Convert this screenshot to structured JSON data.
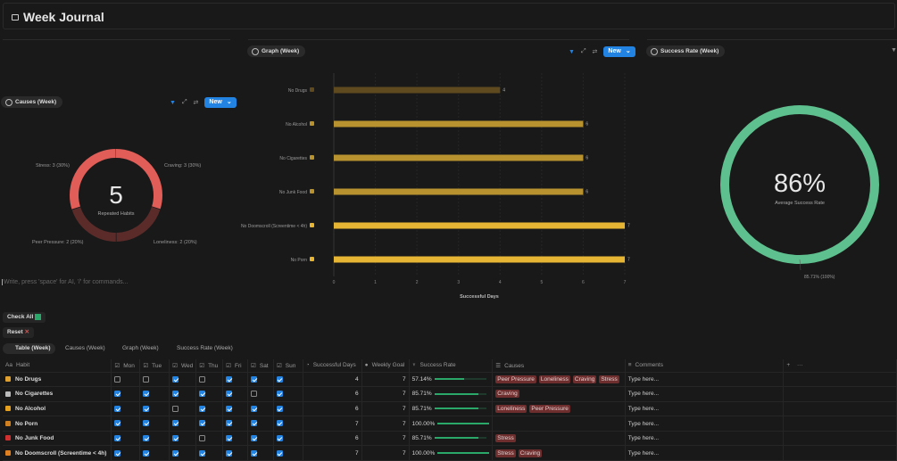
{
  "title": "Week Journal",
  "causes_panel": {
    "label": "Causes (Week)",
    "new": "New",
    "center_value": "5",
    "center_label": "Repeated Habits",
    "slices": [
      {
        "name": "Craving",
        "count": 3,
        "label": "Craving: 3 (30%)",
        "color": "#e05d58"
      },
      {
        "name": "Loneliness",
        "count": 2,
        "label": "Loneliness: 2 (20%)",
        "color": "#5a2b29"
      },
      {
        "name": "Peer Pressure",
        "count": 2,
        "label": "Peer Pressure: 2 (20%)",
        "color": "#5a2b29"
      },
      {
        "name": "Stress",
        "count": 3,
        "label": "Stress: 3 (30%)",
        "color": "#e05d58"
      }
    ]
  },
  "editor_placeholder": "Write, press 'space' for AI, '/' for commands...",
  "graph_panel": {
    "label": "Graph (Week)",
    "new": "New"
  },
  "chart_data": {
    "type": "bar",
    "orientation": "horizontal",
    "categories": [
      "No Drugs",
      "No Alcohol",
      "No Cigarettes",
      "No Junk Food",
      "No Doomscroll (Screentime < 4h)",
      "No Porn"
    ],
    "values": [
      4,
      6,
      6,
      6,
      7,
      7
    ],
    "colors": [
      "#5e4a1e",
      "#b8922e",
      "#b8922e",
      "#b8922e",
      "#e6b533",
      "#e6b533"
    ],
    "xlabel": "Successful Days",
    "xlim": [
      0,
      7
    ],
    "xticks": [
      "0",
      "1",
      "2",
      "3",
      "4",
      "5",
      "6",
      "7"
    ],
    "grid": true
  },
  "success_panel": {
    "label": "Success Rate (Week)",
    "value": "86%",
    "caption": "Average Success Rate",
    "slice_label": "85.71% (100%)",
    "fraction": 1.0,
    "color": "#5ec08e"
  },
  "buttons": {
    "check_all": "Check All",
    "reset": "Reset"
  },
  "tabs": [
    "Table (Week)",
    "Causes (Week)",
    "Graph (Week)",
    "Success Rate (Week)"
  ],
  "columns": [
    "Habit",
    "Mon",
    "Tue",
    "Wed",
    "Thu",
    "Fri",
    "Sat",
    "Sun",
    "Successful Days",
    "Weekly Goal",
    "Success Rate",
    "Causes",
    "Comments"
  ],
  "rows": [
    {
      "habit": "No Drugs",
      "icon": "pill-icon",
      "days": [
        false,
        false,
        true,
        false,
        true,
        true,
        true
      ],
      "successful": "4",
      "goal": "7",
      "rate": "57.14%",
      "rate_frac": 0.5714,
      "causes": [
        "Peer Pressure",
        "Loneliness",
        "Craving",
        "Stress"
      ],
      "comment": "Type here..."
    },
    {
      "habit": "No Cigarettes",
      "icon": "cigarette-icon",
      "days": [
        true,
        true,
        true,
        true,
        true,
        false,
        true
      ],
      "successful": "6",
      "goal": "7",
      "rate": "85.71%",
      "rate_frac": 0.8571,
      "causes": [
        "Craving"
      ],
      "comment": "Type here..."
    },
    {
      "habit": "No Alcohol",
      "icon": "beer-icon",
      "days": [
        true,
        true,
        false,
        true,
        true,
        true,
        true
      ],
      "successful": "6",
      "goal": "7",
      "rate": "85.71%",
      "rate_frac": 0.8571,
      "causes": [
        "Loneliness",
        "Peer Pressure"
      ],
      "comment": "Type here..."
    },
    {
      "habit": "No Porn",
      "icon": "no-porn-icon",
      "days": [
        true,
        true,
        true,
        true,
        true,
        true,
        true
      ],
      "successful": "7",
      "goal": "7",
      "rate": "100.00%",
      "rate_frac": 1,
      "causes": [],
      "comment": "Type here..."
    },
    {
      "habit": "No Junk Food",
      "icon": "fries-icon",
      "days": [
        true,
        true,
        true,
        false,
        true,
        true,
        true
      ],
      "successful": "6",
      "goal": "7",
      "rate": "85.71%",
      "rate_frac": 0.8571,
      "causes": [
        "Stress"
      ],
      "comment": "Type here..."
    },
    {
      "habit": "No Doomscroll (Screentime < 4h)",
      "icon": "phone-icon",
      "days": [
        true,
        true,
        true,
        true,
        true,
        true,
        true
      ],
      "successful": "7",
      "goal": "7",
      "rate": "100.00%",
      "rate_frac": 1,
      "causes": [
        "Stress",
        "Craving"
      ],
      "comment": "Type here..."
    }
  ]
}
